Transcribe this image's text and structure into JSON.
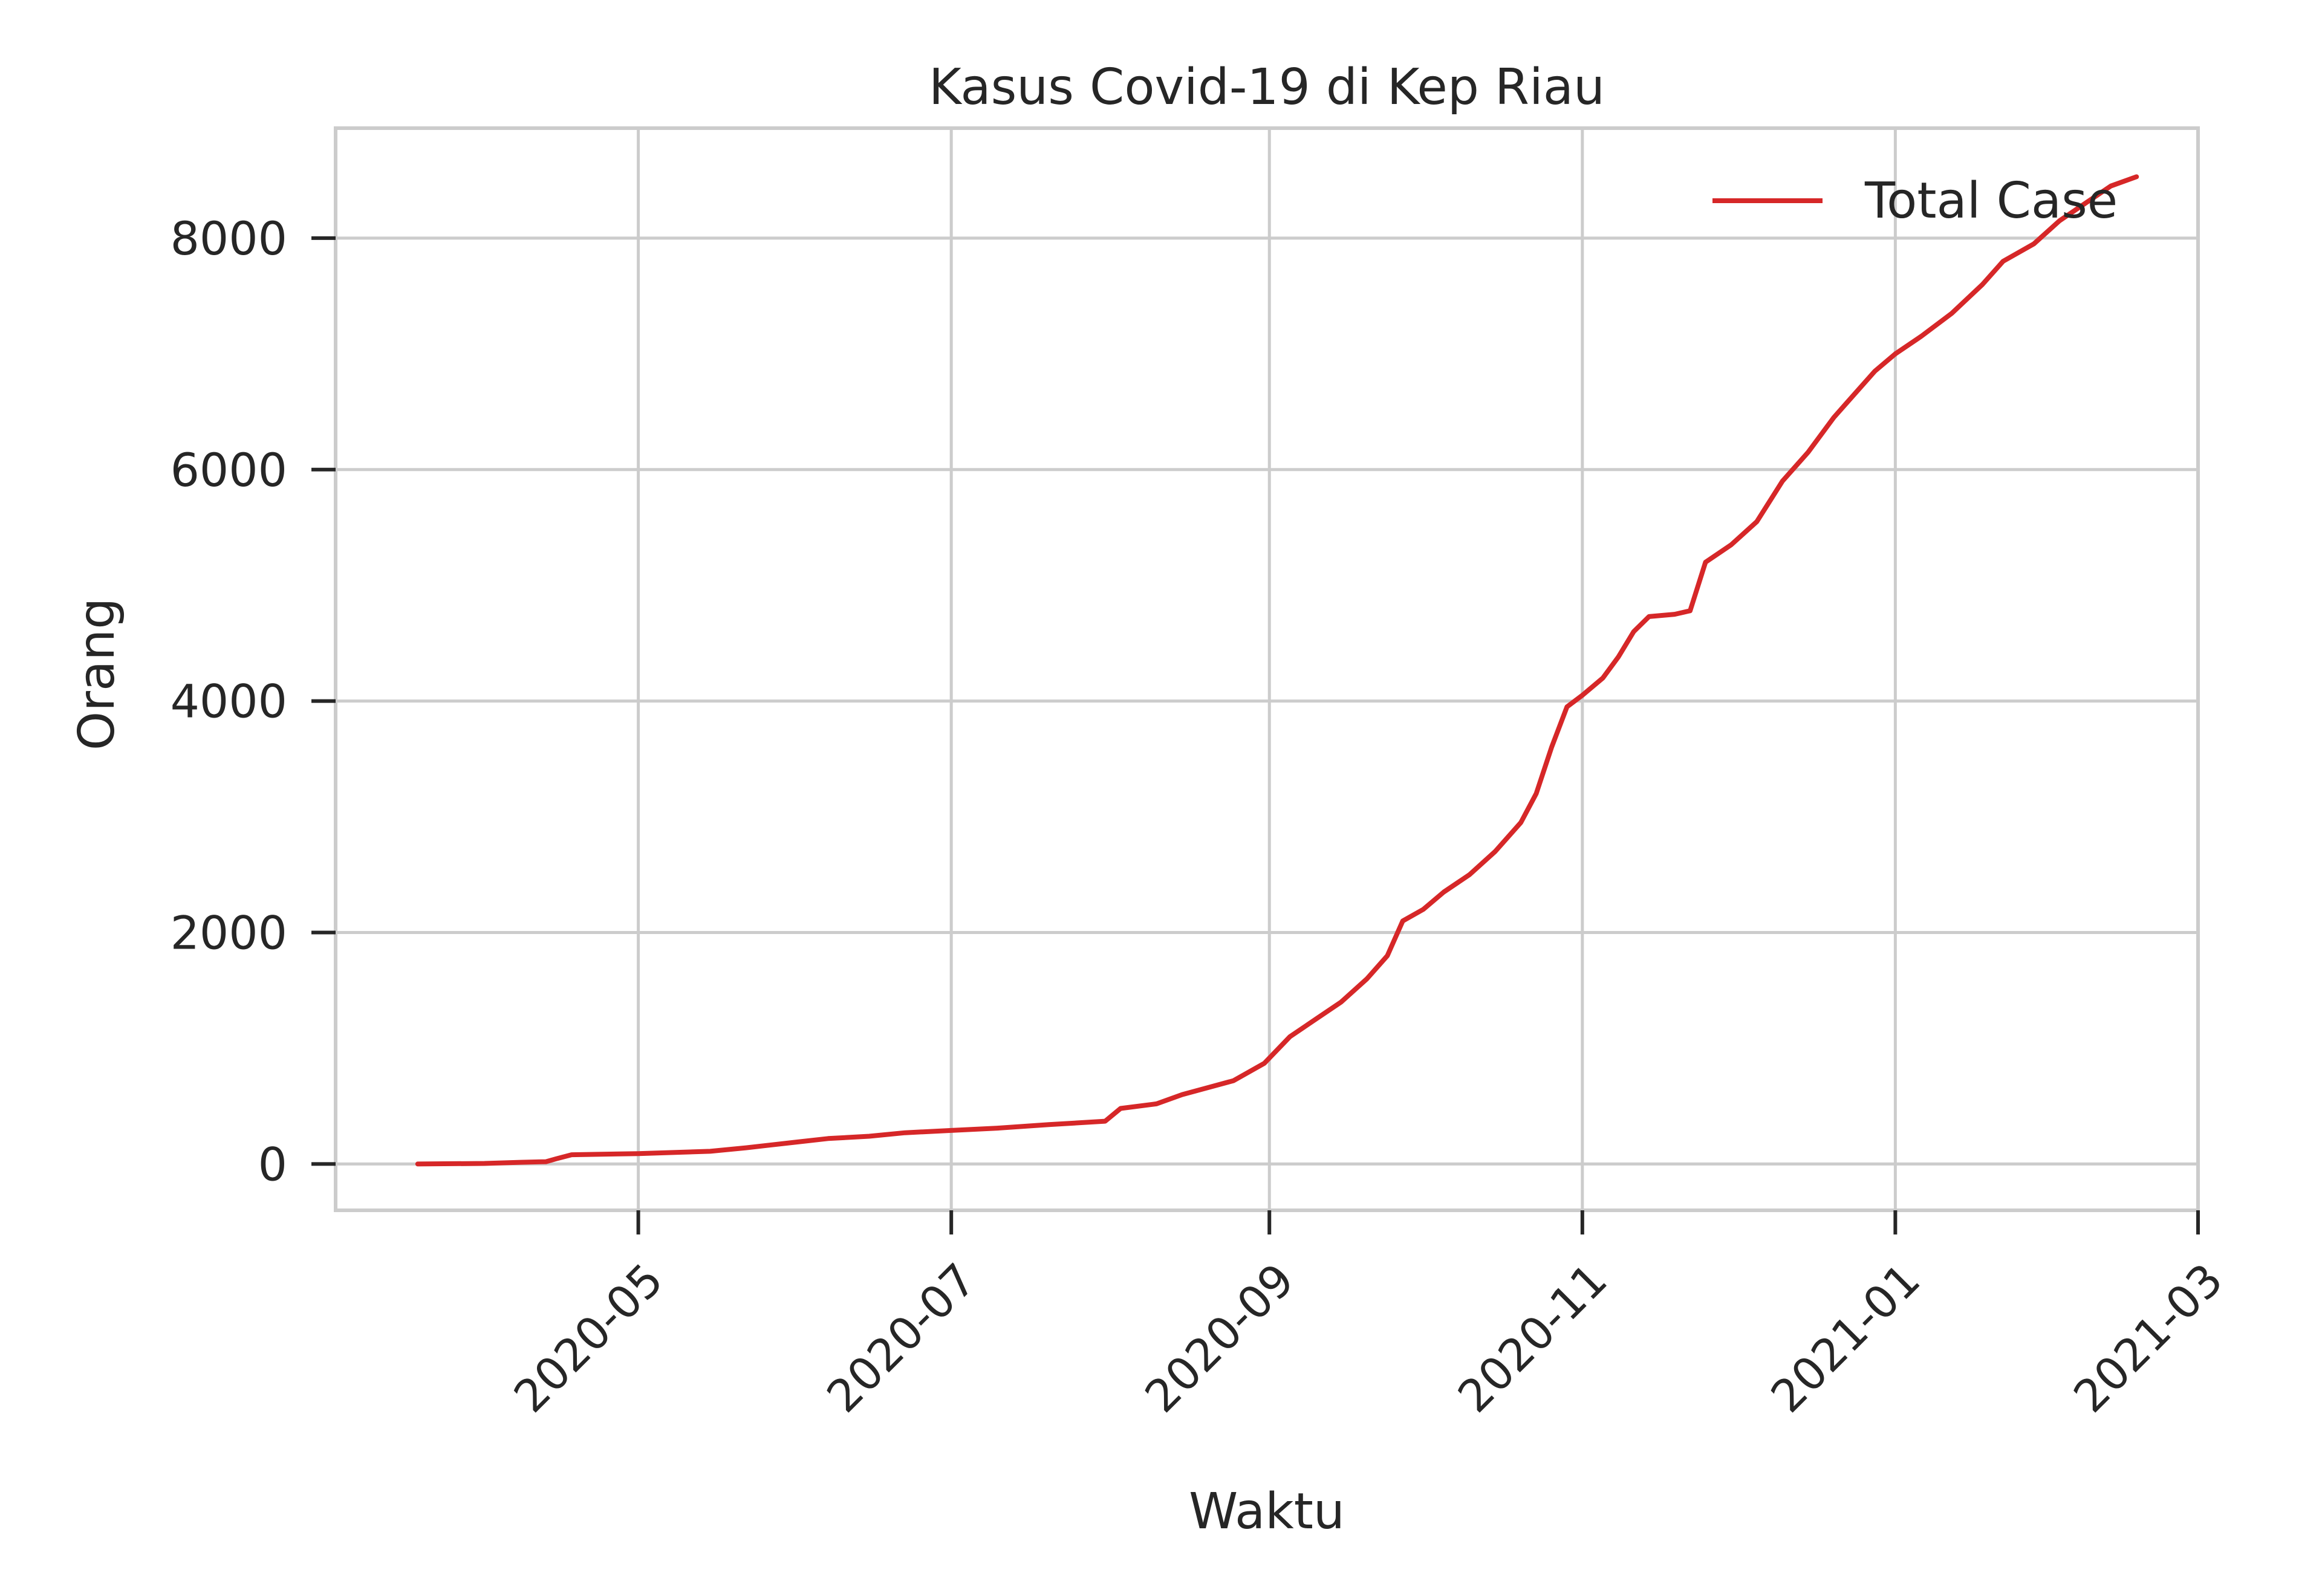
{
  "chart_data": {
    "type": "line",
    "title": "Kasus Covid-19 di Kep Riau",
    "xlabel": "Waktu",
    "ylabel": "Orang",
    "x_axis_type": "date",
    "xlim": [
      "2020-03-03",
      "2021-03-01"
    ],
    "ylim": [
      -400,
      8950
    ],
    "x_ticks": [
      "2020-05-01",
      "2020-07-01",
      "2020-09-01",
      "2020-11-01",
      "2021-01-01",
      "2021-03-01"
    ],
    "x_tick_labels": [
      "2020-05",
      "2020-07",
      "2020-09",
      "2020-11",
      "2021-01",
      "2021-03"
    ],
    "y_ticks": [
      0,
      2000,
      4000,
      6000,
      8000
    ],
    "y_tick_labels": [
      "0",
      "2000",
      "4000",
      "6000",
      "8000"
    ],
    "grid": true,
    "legend_position": "upper right",
    "colors": {
      "series": "#d62728",
      "grid": "#cccccc",
      "text": "#262626"
    },
    "series": [
      {
        "name": "Total Case",
        "color": "#d62728",
        "points": [
          [
            "2020-03-19",
            0
          ],
          [
            "2020-04-01",
            5
          ],
          [
            "2020-04-08",
            15
          ],
          [
            "2020-04-13",
            20
          ],
          [
            "2020-04-15",
            45
          ],
          [
            "2020-04-18",
            80
          ],
          [
            "2020-05-01",
            90
          ],
          [
            "2020-05-15",
            110
          ],
          [
            "2020-05-22",
            140
          ],
          [
            "2020-06-01",
            190
          ],
          [
            "2020-06-07",
            220
          ],
          [
            "2020-06-15",
            240
          ],
          [
            "2020-06-22",
            270
          ],
          [
            "2020-07-01",
            290
          ],
          [
            "2020-07-10",
            310
          ],
          [
            "2020-07-20",
            340
          ],
          [
            "2020-07-31",
            370
          ],
          [
            "2020-08-03",
            480
          ],
          [
            "2020-08-10",
            520
          ],
          [
            "2020-08-15",
            600
          ],
          [
            "2020-08-20",
            660
          ],
          [
            "2020-08-25",
            720
          ],
          [
            "2020-08-31",
            870
          ],
          [
            "2020-09-05",
            1100
          ],
          [
            "2020-09-10",
            1250
          ],
          [
            "2020-09-15",
            1400
          ],
          [
            "2020-09-20",
            1600
          ],
          [
            "2020-09-24",
            1800
          ],
          [
            "2020-09-27",
            2100
          ],
          [
            "2020-10-01",
            2200
          ],
          [
            "2020-10-05",
            2350
          ],
          [
            "2020-10-10",
            2500
          ],
          [
            "2020-10-15",
            2700
          ],
          [
            "2020-10-20",
            2950
          ],
          [
            "2020-10-23",
            3200
          ],
          [
            "2020-10-26",
            3600
          ],
          [
            "2020-10-29",
            3950
          ],
          [
            "2020-11-01",
            4050
          ],
          [
            "2020-11-05",
            4200
          ],
          [
            "2020-11-08",
            4380
          ],
          [
            "2020-11-11",
            4600
          ],
          [
            "2020-11-14",
            4730
          ],
          [
            "2020-11-19",
            4750
          ],
          [
            "2020-11-22",
            4780
          ],
          [
            "2020-11-25",
            5200
          ],
          [
            "2020-11-30",
            5350
          ],
          [
            "2020-12-05",
            5550
          ],
          [
            "2020-12-10",
            5900
          ],
          [
            "2020-12-15",
            6150
          ],
          [
            "2020-12-20",
            6450
          ],
          [
            "2020-12-24",
            6650
          ],
          [
            "2020-12-28",
            6850
          ],
          [
            "2021-01-01",
            7000
          ],
          [
            "2021-01-06",
            7150
          ],
          [
            "2021-01-12",
            7350
          ],
          [
            "2021-01-18",
            7600
          ],
          [
            "2021-01-22",
            7800
          ],
          [
            "2021-01-28",
            7950
          ],
          [
            "2021-02-02",
            8150
          ],
          [
            "2021-02-07",
            8300
          ],
          [
            "2021-02-12",
            8450
          ],
          [
            "2021-02-17",
            8530
          ]
        ]
      }
    ]
  }
}
